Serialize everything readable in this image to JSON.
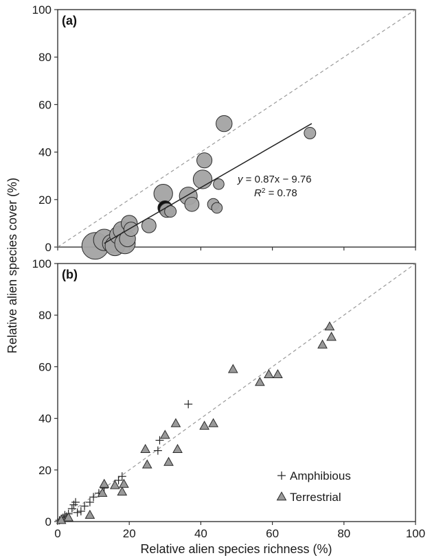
{
  "chart_data": [
    {
      "panel": "(a)",
      "type": "scatter",
      "marker": "bubble",
      "xlim": [
        0,
        100
      ],
      "ylim": [
        0,
        100
      ],
      "xticks": [
        0,
        20,
        40,
        60,
        80,
        100
      ],
      "yticks": [
        0,
        20,
        40,
        60,
        80,
        100
      ],
      "ylabel": "Relative alien species cover (%)",
      "xlabel": "",
      "grid": false,
      "show_x_tick_labels": false,
      "points": [
        {
          "x": 10.5,
          "y": 0.5,
          "size": 3.0
        },
        {
          "x": 13.0,
          "y": 3.0,
          "size": 2.4
        },
        {
          "x": 15.0,
          "y": 1.5,
          "size": 2.0
        },
        {
          "x": 16.0,
          "y": 0.5,
          "size": 2.2
        },
        {
          "x": 17.0,
          "y": 5.0,
          "size": 2.0
        },
        {
          "x": 18.0,
          "y": 7.0,
          "size": 2.0
        },
        {
          "x": 18.8,
          "y": 1.5,
          "size": 2.3
        },
        {
          "x": 19.5,
          "y": 3.5,
          "size": 1.8
        },
        {
          "x": 20.0,
          "y": 10.0,
          "size": 1.8
        },
        {
          "x": 20.5,
          "y": 7.5,
          "size": 1.6
        },
        {
          "x": 25.5,
          "y": 9.0,
          "size": 1.6
        },
        {
          "x": 29.5,
          "y": 22.5,
          "size": 2.1
        },
        {
          "x": 30.0,
          "y": 16.5,
          "size": 1.6,
          "dark": true
        },
        {
          "x": 30.5,
          "y": 15.5,
          "size": 1.6
        },
        {
          "x": 31.5,
          "y": 15.0,
          "size": 1.3
        },
        {
          "x": 36.5,
          "y": 21.5,
          "size": 2.0
        },
        {
          "x": 37.5,
          "y": 18.0,
          "size": 1.6
        },
        {
          "x": 40.5,
          "y": 28.5,
          "size": 2.1
        },
        {
          "x": 41.0,
          "y": 36.5,
          "size": 1.7
        },
        {
          "x": 43.5,
          "y": 18.0,
          "size": 1.3
        },
        {
          "x": 44.5,
          "y": 16.5,
          "size": 1.2
        },
        {
          "x": 45.0,
          "y": 26.5,
          "size": 1.2
        },
        {
          "x": 46.5,
          "y": 52.0,
          "size": 1.8
        },
        {
          "x": 70.5,
          "y": 48.0,
          "size": 1.3
        }
      ],
      "fit_line": {
        "slope": 0.87,
        "intercept": -9.76,
        "x_range": [
          13,
          71
        ]
      },
      "identity_line": true,
      "annotations": {
        "eq_y": "y",
        "eq_rest": " = 0.87x − 9.76",
        "r2_R": "R",
        "r2_sup": "2",
        "r2_rest": " = 0.78"
      }
    },
    {
      "panel": "(b)",
      "type": "scatter",
      "xlim": [
        0,
        100
      ],
      "ylim": [
        0,
        100
      ],
      "xticks": [
        0,
        20,
        40,
        60,
        80,
        100
      ],
      "yticks": [
        0,
        20,
        40,
        60,
        80,
        100
      ],
      "xlabel": "Relative alien species richness (%)",
      "ylabel": "Relative alien species cover (%)",
      "grid": false,
      "identity_line": true,
      "legend_position": "bottom-right",
      "series": [
        {
          "name": "Amphibious",
          "marker": "plus",
          "points": [
            {
              "x": 0.5,
              "y": 0.5
            },
            {
              "x": 1.0,
              "y": 1.0
            },
            {
              "x": 1.5,
              "y": 1.5
            },
            {
              "x": 2.0,
              "y": 2.5
            },
            {
              "x": 2.5,
              "y": 2.0
            },
            {
              "x": 3.0,
              "y": 3.0
            },
            {
              "x": 4.0,
              "y": 5.0
            },
            {
              "x": 4.5,
              "y": 6.5
            },
            {
              "x": 5.0,
              "y": 7.5
            },
            {
              "x": 5.5,
              "y": 3.5
            },
            {
              "x": 6.5,
              "y": 4.0
            },
            {
              "x": 7.5,
              "y": 6.0
            },
            {
              "x": 9.0,
              "y": 7.5
            },
            {
              "x": 10.0,
              "y": 9.5
            },
            {
              "x": 11.5,
              "y": 11.0
            },
            {
              "x": 13.0,
              "y": 13.0
            },
            {
              "x": 17.0,
              "y": 16.0
            },
            {
              "x": 18.0,
              "y": 17.5
            },
            {
              "x": 28.0,
              "y": 27.5
            },
            {
              "x": 28.5,
              "y": 31.5
            },
            {
              "x": 36.5,
              "y": 45.5
            }
          ]
        },
        {
          "name": "Terrestrial",
          "marker": "triangle",
          "points": [
            {
              "x": 1.0,
              "y": 0.5
            },
            {
              "x": 3.0,
              "y": 1.5
            },
            {
              "x": 9.0,
              "y": 2.5
            },
            {
              "x": 12.5,
              "y": 11.0
            },
            {
              "x": 13.0,
              "y": 14.5
            },
            {
              "x": 16.0,
              "y": 14.0
            },
            {
              "x": 18.0,
              "y": 11.5
            },
            {
              "x": 18.5,
              "y": 14.5
            },
            {
              "x": 24.5,
              "y": 28.0
            },
            {
              "x": 25.0,
              "y": 22.0
            },
            {
              "x": 30.0,
              "y": 33.5
            },
            {
              "x": 31.0,
              "y": 23.0
            },
            {
              "x": 33.0,
              "y": 38.0
            },
            {
              "x": 33.5,
              "y": 28.0
            },
            {
              "x": 41.0,
              "y": 37.0
            },
            {
              "x": 43.5,
              "y": 38.0
            },
            {
              "x": 49.0,
              "y": 59.0
            },
            {
              "x": 56.5,
              "y": 54.0
            },
            {
              "x": 59.0,
              "y": 57.0
            },
            {
              "x": 61.5,
              "y": 57.0
            },
            {
              "x": 74.0,
              "y": 68.5
            },
            {
              "x": 76.0,
              "y": 75.5
            },
            {
              "x": 76.5,
              "y": 71.5
            }
          ]
        }
      ]
    }
  ],
  "colors": {
    "bubble_fill": "#a3a3a3",
    "bubble_dark": "#111111",
    "triangle_fill": "#999999",
    "outline": "#2a2a2a",
    "identity_line": "#999999",
    "fit_line": "#222222"
  }
}
